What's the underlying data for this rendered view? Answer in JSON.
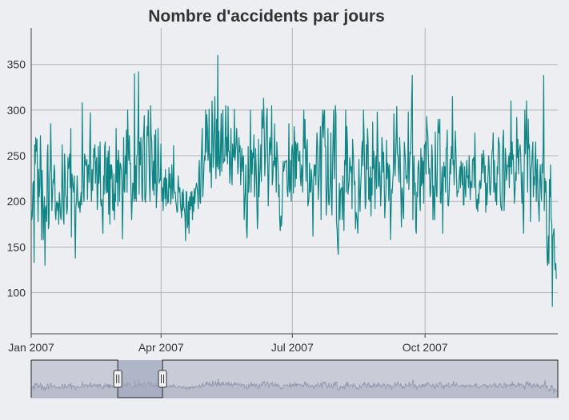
{
  "colors": {
    "background": "#eceef2",
    "series": "#0f8585",
    "grid": "#b4b4b4",
    "axis": "#444444",
    "navigator_fill": "#c9ccd6",
    "navigator_selection": "#9ea6bd",
    "navigator_line": "#8e96ad"
  },
  "chart_data": {
    "type": "line",
    "title": "Nombre d'accidents par jours",
    "xlabel": "",
    "ylabel": "",
    "x_start": "2007-01-01",
    "x_end": "2008-01-01",
    "y_ticks": [
      100,
      150,
      200,
      250,
      300,
      350
    ],
    "ylim": [
      55,
      390
    ],
    "x_ticks": [
      {
        "label": "Jan 2007",
        "day": 0
      },
      {
        "label": "Apr 2007",
        "day": 90
      },
      {
        "label": "Jul 2007",
        "day": 181
      },
      {
        "label": "Oct 2007",
        "day": 273
      }
    ],
    "grid": true,
    "navigator_selection_days": [
      60,
      91
    ],
    "series": [
      {
        "name": "accidents",
        "start": "2007-01-01",
        "values": [
          192,
          180,
          185,
          220,
          222,
          133,
          262,
          241,
          270,
          255,
          268,
          220,
          178,
          235,
          205,
          218,
          272,
          245,
          158,
          234,
          208,
          158,
          189,
          205,
          130,
          192,
          195,
          178,
          250,
          262,
          170,
          175,
          230,
          235,
          285,
          242,
          190,
          205,
          224,
          220,
          240,
          232,
          188,
          180,
          198,
          200,
          190,
          198,
          175,
          210,
          200,
          184,
          180,
          200,
          262,
          221,
          182,
          175,
          252,
          235,
          207,
          205,
          186,
          192,
          248,
          236,
          240,
          252,
          215,
          280,
          161,
          230,
          222,
          215,
          210,
          228,
          172,
          138,
          195,
          200,
          228,
          207,
          196,
          193,
          200,
          188,
          202,
          210,
          196,
          308,
          238,
          210,
          200,
          252,
          248,
          240,
          239,
          246,
          202,
          238,
          240,
          221,
          258,
          297,
          225,
          200,
          235,
          212,
          238,
          258,
          248,
          262,
          220,
          242,
          248,
          191,
          205,
          260,
          220,
          230,
          265,
          200,
          195,
          202,
          183,
          165,
          228,
          208,
          260,
          265,
          214,
          209,
          248,
          210,
          255,
          186,
          260,
          175,
          240,
          225,
          240,
          232,
          191,
          190,
          230,
          180,
          208,
          200,
          280,
          221,
          245,
          195,
          256,
          243,
          200,
          242,
          240,
          235,
          220,
          159,
          200,
          270,
          212,
          210,
          250,
          230,
          278,
          210,
          300,
          265,
          245,
          272,
          241,
          242,
          205,
          180,
          201,
          220,
          220,
          200,
          340,
          203,
          239,
          200,
          250,
          250,
          276,
          342,
          208,
          265,
          240,
          270,
          250,
          205,
          200,
          265,
          275,
          294,
          203,
          199,
          210,
          245,
          282,
          272,
          300,
          260,
          220,
          200,
          305,
          272,
          265,
          230,
          212,
          244,
          207,
          273,
          220,
          278,
          193,
          209,
          230,
          280,
          249,
          220,
          224,
          223,
          263,
          220,
          200,
          215,
          190,
          222,
          226,
          203,
          235,
          195,
          225,
          210,
          198,
          200,
          237,
          215,
          230,
          197,
          204,
          240,
          217,
          203,
          261,
          215,
          209,
          210,
          200,
          195,
          188,
          190,
          228,
          217,
          210,
          215,
          196,
          190,
          182,
          210,
          190,
          213,
          193,
          192,
          182,
          157,
          211,
          210,
          171,
          175,
          200,
          165,
          205,
          191,
          210,
          195,
          211,
          180,
          205,
          189,
          214,
          198,
          210,
          215,
          220,
          215,
          208,
          192,
          232,
          245,
          200,
          198,
          240,
          259,
          280,
          205,
          219,
          240,
          250,
          245,
          300,
          254,
          295,
          280,
          245,
          253,
          301,
          232,
          252,
          238,
          215,
          310,
          289,
          237,
          262,
          283,
          315,
          245,
          225,
          290,
          238,
          360,
          235,
          277,
          243,
          228,
          265,
          296,
          233,
          270,
          300,
          242,
          246,
          244,
          270,
          305,
          250,
          270,
          241,
          304,
          255,
          255,
          220,
          242,
          280,
          230,
          218,
          263,
          250,
          248,
          301,
          245,
          253,
          263,
          280,
          258,
          230,
          240,
          270,
          254,
          261,
          218,
          240,
          258,
          233,
          247,
          250,
          180,
          198,
          210,
          240,
          172,
          160,
          190,
          260,
          210,
          222,
          240,
          300,
          210,
          256,
          230,
          253,
          248,
          273,
          205,
          225,
          258,
          238,
          210,
          170,
          185,
          268,
          205,
          225,
          236,
          262,
          222,
          300,
          283,
          280,
          313,
          278,
          228,
          245,
          266,
          290,
          302,
          245,
          195,
          225,
          262,
          270,
          251,
          263,
          305,
          218,
          225,
          244,
          240,
          285,
          238,
          248,
          210,
          265,
          250,
          240,
          205,
          218,
          180,
          168,
          184,
          173,
          186,
          220,
          244,
          233,
          238,
          244,
          243,
          244,
          245,
          212,
          205,
          220,
          285,
          210,
          214,
          245,
          200,
          257,
          262,
          250,
          209,
          282,
          270,
          216,
          265,
          225,
          262,
          264,
          252,
          244,
          245,
          255,
          226,
          217,
          240,
          233,
          210,
          258,
          300,
          258,
          290,
          248,
          222,
          258,
          268,
          195,
          198,
          204,
          242,
          210,
          211,
          235,
          226,
          207,
          162,
          222,
          240,
          228,
          240,
          218,
          250,
          275,
          260,
          202,
          215,
          228,
          260,
          282,
          180,
          265,
          285,
          300,
          270,
          294,
          300,
          260,
          260,
          185,
          200,
          225,
          280,
          200,
          196,
          210,
          220,
          275,
          200,
          185,
          235,
          270,
          300,
          225,
          258,
          305,
          296,
          178,
          170,
          150,
          142,
          195,
          220,
          180,
          212,
          214,
          215,
          180,
          228,
          205,
          168,
          245,
          240,
          300,
          210,
          282,
          262,
          208,
          215,
          222,
          248,
          240,
          232,
          238,
          192,
          268,
          255,
          242,
          218,
          222,
          170,
          188,
          185,
          179,
          165,
          200,
          246,
          209,
          189,
          215,
          230,
          258,
          266,
          239,
          300,
          270,
          235,
          192,
          198,
          262,
          235,
          280,
          265,
          202,
          226,
          200,
          238,
          184,
          225,
          207,
          287,
          236,
          255,
          230,
          192,
          246,
          250,
          214,
          298,
          260,
          218,
          216,
          243,
          228,
          195,
          215,
          270,
          258,
          232,
          254,
          224,
          182,
          198,
          210,
          267,
          225,
          242,
          238,
          201,
          240,
          229,
          158,
          189,
          213,
          209,
          223,
          232,
          296,
          242,
          228,
          250,
          272,
          304,
          252,
          250,
          232,
          221,
          270,
          252,
          215,
          172,
          215,
          210,
          190,
          181,
          265,
          255,
          245,
          225,
          228,
          220,
          236,
          298,
          213,
          235,
          254,
          252,
          279,
          315,
          338,
          180,
          230,
          250,
          207,
          220,
          170,
          165,
          210,
          205,
          238,
          245,
          232,
          200,
          190,
          258,
          217,
          248,
          220,
          244,
          198,
          262,
          258,
          265,
          230,
          293,
          280,
          272,
          250,
          230,
          236,
          205,
          210,
          231,
          262,
          248,
          180,
          217,
          200,
          180,
          276,
          230,
          208,
          205,
          258,
          290,
          275,
          275,
          290,
          199,
          198,
          220,
          238,
          165,
          222,
          243,
          227,
          238,
          210,
          258,
          258,
          278,
          196,
          195,
          205,
          226,
          246,
          230,
          260,
          247,
          315,
          240,
          245,
          218,
          250,
          277,
          255,
          230,
          205,
          211,
          210,
          218,
          229,
          238,
          215,
          244,
          235,
          218,
          242,
          196,
          196,
          238,
          218,
          205,
          232,
          245,
          226,
          228,
          215,
          250,
          228,
          202,
          222,
          217,
          215,
          246,
          245,
          248,
          215,
          275,
          238,
          203,
          192,
          202,
          189,
          208,
          198,
          220,
          223,
          214,
          218,
          252,
          246,
          231,
          256,
          248,
          221,
          239,
          188,
          220,
          196,
          210,
          230,
          250,
          238,
          210,
          207,
          218,
          242,
          255,
          257,
          275,
          210,
          245,
          215,
          200,
          220,
          196,
          238,
          230,
          270,
          265,
          260,
          213,
          196,
          192,
          190,
          246,
          270,
          278,
          190,
          210,
          258,
          247,
          223,
          232,
          240,
          238,
          250,
          215,
          253,
          238,
          310,
          230,
          265,
          246,
          251,
          226,
          198,
          213,
          232,
          223,
          292,
          248,
          268,
          230,
          255,
          258,
          262,
          250,
          218,
          198,
          232,
          188,
          165,
          231,
          300,
          252,
          268,
          310,
          260,
          210,
          290,
          258,
          262,
          237,
          178,
          235,
          240,
          255,
          265,
          205,
          227,
          218,
          246,
          265,
          200,
          230,
          246,
          203,
          194,
          178,
          222,
          240,
          216,
          201,
          241,
          231,
          260,
          338,
          190,
          225,
          210,
          222,
          166,
          135,
          130,
          162,
          132,
          224,
          205,
          240,
          180,
          176,
          85,
          162,
          165,
          170,
          135,
          125,
          132,
          115
        ]
      }
    ]
  }
}
